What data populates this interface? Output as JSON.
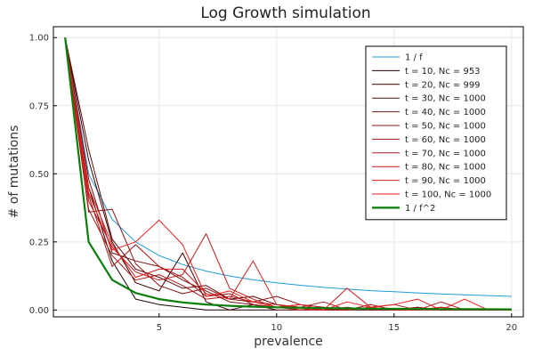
{
  "chart_data": {
    "type": "line",
    "title": "Log Growth simulation",
    "xlabel": "prevalence",
    "ylabel": "# of mutations",
    "xlim": [
      0.5,
      20.5
    ],
    "ylim": [
      -0.025,
      1.04
    ],
    "xticks": [
      5,
      10,
      15,
      20
    ],
    "yticks": [
      0.0,
      0.25,
      0.5,
      0.75,
      1.0
    ],
    "ytick_labels": [
      "0.00",
      "0.25",
      "0.50",
      "0.75",
      "1.00"
    ],
    "grid": true,
    "legend_position": "top-right",
    "series": [
      {
        "name": "1 / f",
        "color": "#1f9bd9",
        "width": 1,
        "x": [
          1,
          2,
          3,
          4,
          5,
          6,
          7,
          8,
          9,
          10,
          11,
          12,
          13,
          14,
          15,
          16,
          17,
          18,
          19,
          20
        ],
        "y": [
          1.0,
          0.5,
          0.333,
          0.25,
          0.2,
          0.167,
          0.143,
          0.125,
          0.111,
          0.1,
          0.091,
          0.083,
          0.077,
          0.071,
          0.067,
          0.063,
          0.059,
          0.056,
          0.053,
          0.05
        ]
      },
      {
        "name": "t = 10, Nc = 953",
        "color": "#1a0000",
        "width": 1,
        "x": [
          1,
          2,
          3,
          4,
          5,
          6,
          7,
          8,
          9,
          10
        ],
        "y": [
          1.0,
          0.45,
          0.18,
          0.04,
          0.02,
          0.01,
          0.0,
          0.0,
          0.0,
          0.0
        ]
      },
      {
        "name": "t = 20, Nc = 999",
        "color": "#3d0000",
        "width": 1,
        "x": [
          1,
          2,
          3,
          4,
          5,
          6,
          7,
          8,
          9,
          10,
          11,
          12,
          13,
          14,
          15
        ],
        "y": [
          1.0,
          0.55,
          0.25,
          0.1,
          0.07,
          0.21,
          0.03,
          0.0,
          0.02,
          0.0,
          0.0,
          0.0,
          0.0,
          0.0,
          0.0
        ]
      },
      {
        "name": "t = 30, Nc = 1000",
        "color": "#5c0a0a",
        "width": 1,
        "x": [
          1,
          2,
          3,
          4,
          5,
          6,
          7,
          8,
          9,
          10,
          11,
          12,
          13,
          14,
          15,
          16,
          17,
          18,
          19
        ],
        "y": [
          1.0,
          0.59,
          0.26,
          0.15,
          0.12,
          0.08,
          0.09,
          0.04,
          0.05,
          0.02,
          0.01,
          0.0,
          0.0,
          0.01,
          0.0,
          0.0,
          0.0,
          0.0,
          0.0
        ]
      },
      {
        "name": "t = 40, Nc = 1000",
        "color": "#751212",
        "width": 1,
        "x": [
          1,
          2,
          3,
          4,
          5,
          6,
          7,
          8,
          9,
          10,
          11,
          12,
          13,
          14,
          15,
          16,
          17,
          18,
          19,
          20
        ],
        "y": [
          1.0,
          0.48,
          0.21,
          0.18,
          0.16,
          0.11,
          0.07,
          0.03,
          0.02,
          0.01,
          0.02,
          0.0,
          0.01,
          0.0,
          0.0,
          0.01,
          0.0,
          0.0,
          0.0,
          0.0
        ]
      },
      {
        "name": "t = 50, Nc = 1000",
        "color": "#8c1212",
        "width": 1,
        "x": [
          1,
          2,
          3,
          4,
          5,
          6,
          7,
          8,
          9,
          10,
          11,
          12,
          13,
          14,
          15,
          16,
          17,
          18,
          19,
          20
        ],
        "y": [
          1.0,
          0.36,
          0.37,
          0.17,
          0.09,
          0.06,
          0.08,
          0.04,
          0.03,
          0.05,
          0.02,
          0.01,
          0.0,
          0.02,
          0.0,
          0.01,
          0.0,
          0.0,
          0.0,
          0.0
        ]
      },
      {
        "name": "t = 60, Nc = 1000",
        "color": "#a01414",
        "width": 1,
        "x": [
          1,
          2,
          3,
          4,
          5,
          6,
          7,
          8,
          9,
          10,
          11,
          12,
          13,
          14,
          15,
          16,
          17,
          18,
          19,
          20
        ],
        "y": [
          1.0,
          0.42,
          0.16,
          0.24,
          0.16,
          0.12,
          0.05,
          0.06,
          0.02,
          0.01,
          0.01,
          0.03,
          0.0,
          0.01,
          0.02,
          0.0,
          0.01,
          0.0,
          0.0,
          0.0
        ]
      },
      {
        "name": "t = 70, Nc = 1000",
        "color": "#b01818",
        "width": 1,
        "x": [
          1,
          2,
          3,
          4,
          5,
          6,
          7,
          8,
          9,
          10,
          11,
          12,
          13,
          14,
          15,
          16,
          17,
          18,
          19,
          20
        ],
        "y": [
          1.0,
          0.37,
          0.2,
          0.11,
          0.13,
          0.09,
          0.04,
          0.05,
          0.03,
          0.02,
          0.0,
          0.01,
          0.0,
          0.02,
          0.0,
          0.0,
          0.03,
          0.0,
          0.0,
          0.0
        ]
      },
      {
        "name": "t = 80, Nc = 1000",
        "color": "#c01a1a",
        "width": 1,
        "x": [
          1,
          2,
          3,
          4,
          5,
          6,
          7,
          8,
          9,
          10,
          11,
          12,
          13,
          14,
          15,
          16,
          17,
          18,
          19,
          20
        ],
        "y": [
          1.0,
          0.4,
          0.23,
          0.14,
          0.11,
          0.13,
          0.28,
          0.08,
          0.04,
          0.01,
          0.0,
          0.0,
          0.0,
          0.01,
          0.0,
          0.0,
          0.01,
          0.0,
          0.0,
          0.0
        ]
      },
      {
        "name": "t = 90, Nc = 1000",
        "color": "#d41c1c",
        "width": 1,
        "x": [
          1,
          2,
          3,
          4,
          5,
          6,
          7,
          8,
          9,
          10,
          11,
          12,
          13,
          14,
          15,
          16,
          17,
          18,
          19,
          20
        ],
        "y": [
          1.0,
          0.45,
          0.24,
          0.12,
          0.15,
          0.15,
          0.06,
          0.04,
          0.18,
          0.02,
          0.01,
          0.0,
          0.08,
          0.01,
          0.0,
          0.0,
          0.0,
          0.0,
          0.0,
          0.0
        ]
      },
      {
        "name": "t = 100, Nc = 1000",
        "color": "#e81e1e",
        "width": 1,
        "x": [
          1,
          2,
          3,
          4,
          5,
          6,
          7,
          8,
          9,
          10,
          11,
          12,
          13,
          14,
          15,
          16,
          17,
          18,
          19,
          20
        ],
        "y": [
          1.0,
          0.43,
          0.22,
          0.25,
          0.33,
          0.24,
          0.05,
          0.07,
          0.03,
          0.01,
          0.02,
          0.0,
          0.03,
          0.01,
          0.02,
          0.04,
          0.0,
          0.04,
          0.0,
          0.0
        ]
      },
      {
        "name": "1 / f^2",
        "color": "#0a7d0a",
        "width": 2.2,
        "x": [
          1,
          2,
          3,
          4,
          5,
          6,
          7,
          8,
          9,
          10,
          11,
          12,
          13,
          14,
          15,
          16,
          17,
          18,
          19,
          20
        ],
        "y": [
          1.0,
          0.25,
          0.111,
          0.0625,
          0.04,
          0.0278,
          0.0204,
          0.0156,
          0.0123,
          0.01,
          0.0083,
          0.0069,
          0.0059,
          0.0051,
          0.0044,
          0.0039,
          0.0035,
          0.0031,
          0.0028,
          0.0025
        ]
      }
    ]
  }
}
